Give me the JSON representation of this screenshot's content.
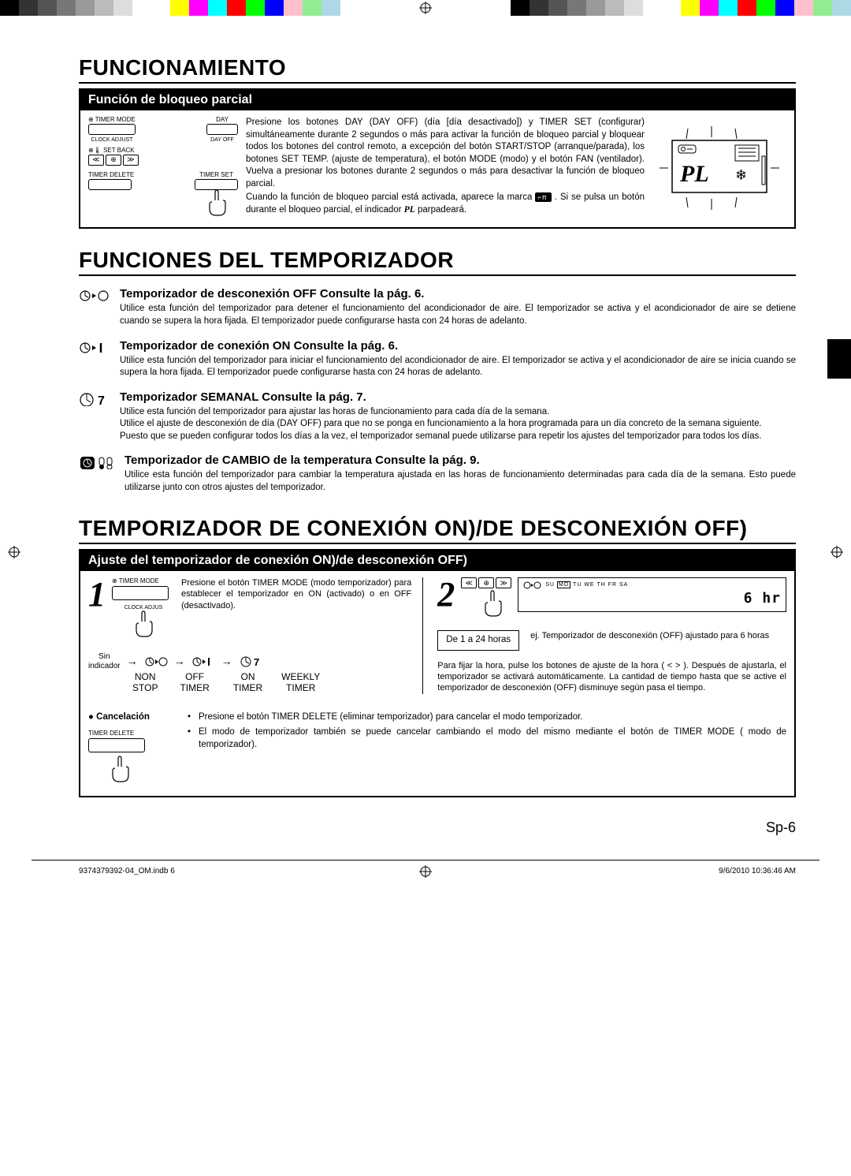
{
  "colorbar": [
    "#000000",
    "#333333",
    "#555555",
    "#777777",
    "#999999",
    "#bbbbbb",
    "#dddddd",
    "#ffffff",
    "#ffffff",
    "#ffff00",
    "#ff00ff",
    "#00ffff",
    "#ff0000",
    "#00ff00",
    "#0000ff",
    "#ffc0cb",
    "#90ee90",
    "#add8e6"
  ],
  "heading1": "FUNCIONAMIENTO",
  "partial_lock": {
    "header": "Función de bloqueo parcial",
    "remote_labels": {
      "timer_mode": "TIMER MODE",
      "day": "DAY",
      "clock_adjust": "CLOCK ADJUST",
      "day_off": "DAY OFF",
      "set_back": "SET BACK",
      "timer_delete": "TIMER DELETE",
      "timer_set": "TIMER SET"
    },
    "body_1": "Presione los botones DAY (DAY OFF) (día [día desactivado]) y TIMER SET (configurar) simultáneamente durante 2 segundos o más para activar la función de bloqueo parcial y bloquear todos los botones del control remoto, a excepción del botón START/STOP (arranque/parada), los botones SET TEMP. (ajuste de temperatura), el botón MODE (modo) y el botón FAN (ventilador). Vuelva a presionar los botones durante 2 segundos o más para desactivar la función de bloqueo parcial.",
    "body_2a": "Cuando la función de bloqueo parcial está activada, aparece la marca ",
    "body_2b": ". Si se pulsa un botón durante el bloqueo parcial, el indicador ",
    "body_2c": " parpadeará.",
    "pl": "PL",
    "key_label": "⊷"
  },
  "heading2": "FUNCIONES DEL TEMPORIZADOR",
  "timers": [
    {
      "icon": "off",
      "title": "Temporizador de desconexión OFF Consulte la pág. 6.",
      "text": "Utilice esta función del temporizador para detener el funcionamiento del acondicionador de aire. El temporizador se activa y el acondicionador de aire se detiene cuando se supera la hora fijada. El temporizador puede configurarse hasta con 24 horas de adelanto."
    },
    {
      "icon": "on",
      "title": "Temporizador de conexión ON Consulte la pág. 6.",
      "text": "Utilice esta función del temporizador para iniciar el funcionamiento del acondicionador de aire. El temporizador se activa y el acondicionador de aire se inicia cuando se supera la hora fijada. El temporizador puede configurarse hasta con 24 horas de adelanto."
    },
    {
      "icon": "weekly",
      "title": "Temporizador SEMANAL Consulte la pág. 7.",
      "text": "Utilice esta función del temporizador para ajustar las horas de funcionamiento para cada día de la semana.\nUtilice el ajuste de desconexión de día (DAY OFF) para que no se ponga en funcionamiento a la hora programada para un día concreto de la semana siguiente.\nPuesto que se pueden configurar todos los días a la vez, el temporizador semanal puede utilizarse para repetir los ajustes del temporizador para todos los días."
    },
    {
      "icon": "temp",
      "title": "Temporizador de CAMBIO de la temperatura Consulte la pág. 9.",
      "text": "Utilice esta función del temporizador para cambiar la temperatura ajustada en las horas de funcionamiento determinadas para cada día de la semana. Esto puede utilizarse junto con otros ajustes del temporizador."
    }
  ],
  "heading3": "TEMPORIZADOR DE CONEXIÓN ON)/DE DESCONEXIÓN OFF)",
  "onoff": {
    "header": "Ajuste del temporizador de conexión ON)/de desconexión OFF)",
    "step1": {
      "num": "1",
      "btn_label": "TIMER MODE",
      "btn_sub": "CLOCK ADJUS",
      "text": "Presione el botón TIMER MODE (modo temporizador) para establecer el temporizador en ON (activado) o en OFF (desactivado).",
      "sin": "Sin",
      "indicador": "indicador",
      "modes": [
        {
          "top": "NON",
          "bottom": "STOP"
        },
        {
          "top": "OFF",
          "bottom": "TIMER"
        },
        {
          "top": "ON",
          "bottom": "TIMER"
        },
        {
          "top": "WEEKLY",
          "bottom": "TIMER"
        }
      ]
    },
    "step2": {
      "num": "2",
      "range": "De 1 a 24 horas",
      "days": "SU MO TU WE TH FR SA",
      "hr": "6 hr",
      "example": "ej. Temporizador de desconexión (OFF) ajustado para 6 horas",
      "note": "Para fijar la hora, pulse los botones de ajuste de la hora ( < > ). Después de ajustarla, el temporizador se activará automáticamente. La cantidad de tiempo hasta que se active el temporizador de desconexión (OFF) disminuye según pasa el tiempo."
    },
    "cancel": {
      "title": "Cancelación",
      "btn": "TIMER DELETE",
      "items": [
        "Presione el botón TIMER DELETE (eliminar temporizador) para cancelar el modo temporizador.",
        "El modo de temporizador también se puede cancelar cambiando el modo del mismo mediante el botón de TIMER MODE ( modo de temporizador)."
      ]
    }
  },
  "pagenum": "Sp-6",
  "footer": {
    "left": "9374379392-04_OM.indb   6",
    "right": "9/6/2010   10:36:46 AM"
  }
}
